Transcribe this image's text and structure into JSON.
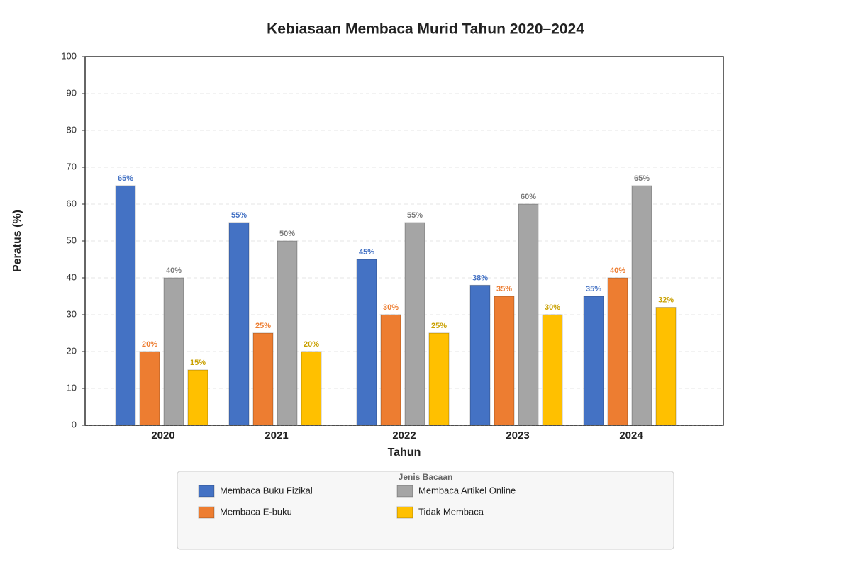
{
  "chart_data": {
    "type": "bar",
    "title": "Kebiasaan Membaca Murid Tahun 2020–2024",
    "xlabel": "Tahun",
    "ylabel": "Peratus (%)",
    "categories": [
      "2020",
      "2021",
      "2022",
      "2023",
      "2024"
    ],
    "series": [
      {
        "name": "Membaca Buku Fizikal",
        "color": "#4472c4",
        "label_color": "#4472c4",
        "values": [
          65,
          55,
          45,
          38,
          35
        ],
        "value_labels": [
          "65%",
          "55%",
          "45%",
          "38%",
          "35%"
        ]
      },
      {
        "name": "Membaca E-buku",
        "color": "#ed7d31",
        "label_color": "#ed7d31",
        "values": [
          20,
          25,
          30,
          35,
          40
        ],
        "value_labels": [
          "20%",
          "25%",
          "30%",
          "35%",
          "40%"
        ]
      },
      {
        "name": "Membaca Artikel Online",
        "color": "#a5a5a5",
        "label_color": "#7a7a7a",
        "values": [
          40,
          50,
          55,
          60,
          65
        ],
        "value_labels": [
          "40%",
          "50%",
          "55%",
          "60%",
          "65%"
        ]
      },
      {
        "name": "Tidak Membaca",
        "color": "#ffc000",
        "label_color": "#c9a000",
        "values": [
          15,
          20,
          25,
          30,
          32
        ],
        "value_labels": [
          "15%",
          "20%",
          "25%",
          "30%",
          "32%"
        ]
      }
    ],
    "legend_title": "Jenis Bacaan",
    "ylim": [
      0,
      100
    ],
    "yticks": [
      0,
      10,
      20,
      30,
      40,
      50,
      60,
      70,
      80,
      90,
      100
    ],
    "grid": true
  }
}
